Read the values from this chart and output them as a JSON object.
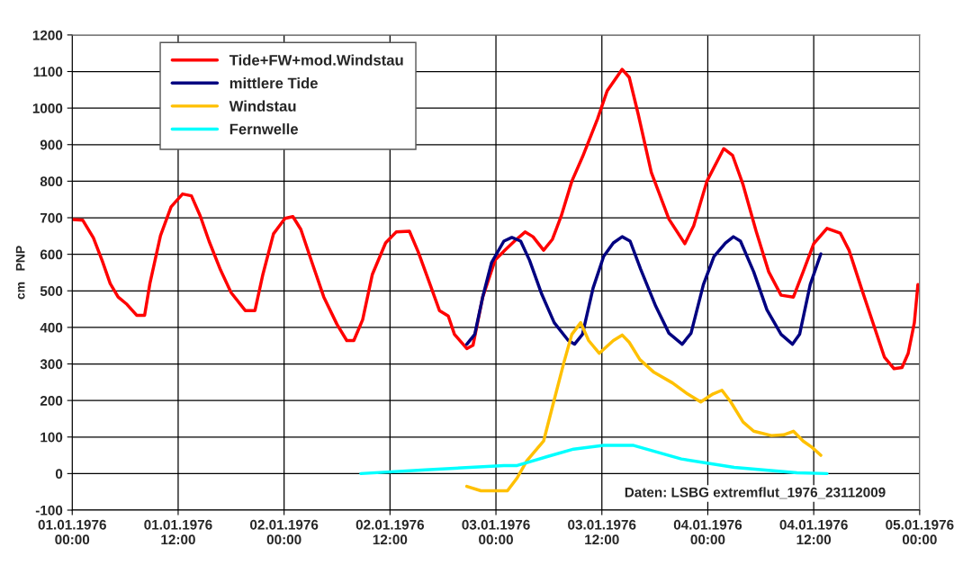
{
  "chart_data": {
    "type": "line",
    "ylabel": "cm   PNP",
    "xlim": [
      "1976-01-01T00:00",
      "1976-01-05T00:00"
    ],
    "ylim": [
      -100,
      1200
    ],
    "xticks": [
      {
        "value": "1976-01-01T00:00",
        "label": "01.01.1976\n00:00"
      },
      {
        "value": "1976-01-01T12:00",
        "label": "01.01.1976\n12:00"
      },
      {
        "value": "1976-01-02T00:00",
        "label": "02.01.1976\n00:00"
      },
      {
        "value": "1976-01-02T12:00",
        "label": "02.01.1976\n12:00"
      },
      {
        "value": "1976-01-03T00:00",
        "label": "03.01.1976\n00:00"
      },
      {
        "value": "1976-01-03T12:00",
        "label": "03.01.1976\n12:00"
      },
      {
        "value": "1976-01-04T00:00",
        "label": "04.01.1976\n00:00"
      },
      {
        "value": "1976-01-04T12:00",
        "label": "04.01.1976\n12:00"
      },
      {
        "value": "1976-01-05T00:00",
        "label": "05.01.1976\n00:00"
      }
    ],
    "yticks": [
      -100,
      0,
      100,
      200,
      300,
      400,
      500,
      600,
      700,
      800,
      900,
      1000,
      1100,
      1200
    ],
    "grid": true,
    "legend": "top left",
    "marker": "none",
    "line_style": "solid",
    "annotations": [
      "Daten: LSBG extremflut_1976_23112009"
    ],
    "series": [
      {
        "name": "Tide+FW+mod.Windstau",
        "color": "#ff0000",
        "x": [
          "1976-01-01T00:06",
          "1976-01-01T01:12",
          "1976-01-01T02:24",
          "1976-01-01T03:24",
          "1976-01-01T04:18",
          "1976-01-01T05:12",
          "1976-01-01T06:12",
          "1976-01-01T07:18",
          "1976-01-01T08:12",
          "1976-01-01T08:48",
          "1976-01-01T10:00",
          "1976-01-01T11:12",
          "1976-01-01T12:30",
          "1976-01-01T13:30",
          "1976-01-01T14:30",
          "1976-01-01T15:30",
          "1976-01-01T16:48",
          "1976-01-01T18:00",
          "1976-01-01T19:36",
          "1976-01-01T20:42",
          "1976-01-01T21:36",
          "1976-01-01T22:48",
          "1976-01-02T00:06",
          "1976-01-02T01:00",
          "1976-01-02T01:54",
          "1976-01-02T03:06",
          "1976-01-02T04:30",
          "1976-01-02T06:00",
          "1976-01-02T07:06",
          "1976-01-02T07:54",
          "1976-01-02T08:54",
          "1976-01-02T10:00",
          "1976-01-02T11:30",
          "1976-01-02T12:42",
          "1976-01-02T14:12",
          "1976-01-02T15:12",
          "1976-01-02T16:30",
          "1976-01-02T17:36",
          "1976-01-02T18:36",
          "1976-01-02T19:18",
          "1976-01-02T20:42",
          "1976-01-02T21:24",
          "1976-01-02T22:30",
          "1976-01-02T23:54",
          "1976-01-03T01:00",
          "1976-01-03T02:06",
          "1976-01-03T03:18",
          "1976-01-03T04:12",
          "1976-01-03T05:24",
          "1976-01-03T06:24",
          "1976-01-03T07:24",
          "1976-01-03T08:36",
          "1976-01-03T09:48",
          "1976-01-03T11:30",
          "1976-01-03T12:36",
          "1976-01-03T14:18",
          "1976-01-03T15:06",
          "1976-01-03T16:06",
          "1976-01-03T17:36",
          "1976-01-03T19:36",
          "1976-01-03T21:24",
          "1976-01-03T22:24",
          "1976-01-03T23:54",
          "1976-01-04T01:48",
          "1976-01-04T02:48",
          "1976-01-04T04:00",
          "1976-01-04T05:30",
          "1976-01-04T06:54",
          "1976-01-04T08:18",
          "1976-01-04T09:42",
          "1976-01-04T10:48",
          "1976-01-04T12:00",
          "1976-01-04T13:30",
          "1976-01-04T15:00",
          "1976-01-04T16:00",
          "1976-01-04T17:24",
          "1976-01-04T18:48",
          "1976-01-04T20:00",
          "1976-01-04T21:06",
          "1976-01-04T22:00",
          "1976-01-04T22:42",
          "1976-01-04T23:24",
          "1976-01-04T23:48"
        ],
        "values": [
          695,
          693,
          645,
          582,
          520,
          483,
          463,
          433,
          433,
          520,
          651,
          730,
          765,
          760,
          705,
          636,
          557,
          495,
          446,
          446,
          545,
          656,
          698,
          703,
          668,
          582,
          483,
          408,
          364,
          364,
          421,
          545,
          631,
          661,
          663,
          606,
          520,
          446,
          431,
          381,
          342,
          351,
          483,
          584,
          611,
          636,
          661,
          648,
          611,
          641,
          705,
          800,
          866,
          970,
          1047,
          1106,
          1084,
          985,
          824,
          696,
          629,
          678,
          800,
          889,
          871,
          790,
          661,
          552,
          488,
          483,
          552,
          629,
          671,
          658,
          611,
          507,
          406,
          319,
          287,
          290,
          329,
          413,
          517
        ]
      },
      {
        "name": "mittlere Tide",
        "color": "#000080",
        "x": [
          "1976-01-02T20:42",
          "1976-01-02T21:36",
          "1976-01-02T22:30",
          "1976-01-02T23:30",
          "1976-01-03T00:54",
          "1976-01-03T01:48",
          "1976-01-03T02:48",
          "1976-01-03T03:48",
          "1976-01-03T05:12",
          "1976-01-03T06:36",
          "1976-01-03T08:12",
          "1976-01-03T08:54",
          "1976-01-03T09:48",
          "1976-01-03T11:00",
          "1976-01-03T12:12",
          "1976-01-03T13:18",
          "1976-01-03T14:18",
          "1976-01-03T15:12",
          "1976-01-03T16:24",
          "1976-01-03T18:06",
          "1976-01-03T19:36",
          "1976-01-03T21:06",
          "1976-01-03T22:06",
          "1976-01-03T23:30",
          "1976-01-04T00:42",
          "1976-01-04T02:00",
          "1976-01-04T02:54",
          "1976-01-04T03:42",
          "1976-01-04T05:12",
          "1976-01-04T06:42",
          "1976-01-04T08:18",
          "1976-01-04T09:36",
          "1976-01-04T10:24",
          "1976-01-04T11:36",
          "1976-01-04T12:48"
        ],
        "values": [
          354,
          381,
          483,
          577,
          636,
          646,
          636,
          584,
          490,
          413,
          364,
          354,
          381,
          507,
          594,
          631,
          648,
          636,
          559,
          458,
          384,
          354,
          384,
          517,
          594,
          631,
          648,
          636,
          552,
          448,
          381,
          354,
          381,
          517,
          601
        ]
      },
      {
        "name": "Windstau",
        "color": "#ffc000",
        "x": [
          "1976-01-02T20:42",
          "1976-01-02T22:18",
          "1976-01-03T00:18",
          "1976-01-03T01:18",
          "1976-01-03T02:24",
          "1976-01-03T03:30",
          "1976-01-03T05:24",
          "1976-01-03T06:24",
          "1976-01-03T07:42",
          "1976-01-03T08:36",
          "1976-01-03T09:36",
          "1976-01-03T10:30",
          "1976-01-03T11:42",
          "1976-01-03T13:18",
          "1976-01-03T14:18",
          "1976-01-03T15:06",
          "1976-01-03T16:18",
          "1976-01-03T17:54",
          "1976-01-03T20:00",
          "1976-01-03T21:42",
          "1976-01-03T23:12",
          "1976-01-04T00:36",
          "1976-01-04T01:36",
          "1976-01-04T02:36",
          "1976-01-04T04:00",
          "1976-01-04T05:12",
          "1976-01-04T07:12",
          "1976-01-04T08:36",
          "1976-01-04T09:42",
          "1976-01-04T10:48",
          "1976-01-04T11:48",
          "1976-01-04T12:48"
        ],
        "values": [
          -35,
          -47,
          -47,
          -47,
          -12,
          35,
          89,
          183,
          304,
          381,
          413,
          364,
          329,
          364,
          379,
          359,
          312,
          277,
          248,
          218,
          196,
          218,
          228,
          196,
          141,
          116,
          104,
          106,
          116,
          89,
          72,
          50
        ]
      },
      {
        "name": "Fernwelle",
        "color": "#00ffff",
        "x": [
          "1976-01-02T08:42",
          "1976-01-02T16:00",
          "1976-01-03T00:54",
          "1976-01-03T02:24",
          "1976-01-03T05:54",
          "1976-01-03T08:48",
          "1976-01-03T12:12",
          "1976-01-03T15:36",
          "1976-01-03T21:00",
          "1976-01-04T03:00",
          "1976-01-04T10:06",
          "1976-01-04T13:30"
        ],
        "values": [
          0,
          10,
          22,
          22,
          47,
          67,
          77,
          77,
          40,
          17,
          2,
          0
        ]
      }
    ]
  }
}
